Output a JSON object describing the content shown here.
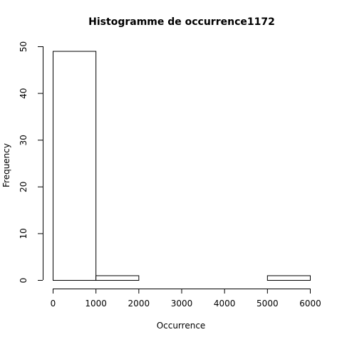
{
  "chart_data": {
    "type": "bar",
    "title": "Histogramme de occurrence1172",
    "xlabel": "Occurrence",
    "ylabel": "Frequency",
    "bins": [
      {
        "start": 0,
        "end": 1000,
        "count": 49
      },
      {
        "start": 1000,
        "end": 2000,
        "count": 1
      },
      {
        "start": 2000,
        "end": 3000,
        "count": 0
      },
      {
        "start": 3000,
        "end": 4000,
        "count": 0
      },
      {
        "start": 4000,
        "end": 5000,
        "count": 0
      },
      {
        "start": 5000,
        "end": 6000,
        "count": 1
      }
    ],
    "xlim": [
      0,
      6000
    ],
    "ylim": [
      0,
      50
    ],
    "x_ticks": [
      0,
      1000,
      2000,
      3000,
      4000,
      5000,
      6000
    ],
    "y_ticks": [
      0,
      10,
      20,
      30,
      40,
      50
    ],
    "grid": false,
    "bar_fill": "#ffffff",
    "bar_stroke": "#000000"
  }
}
